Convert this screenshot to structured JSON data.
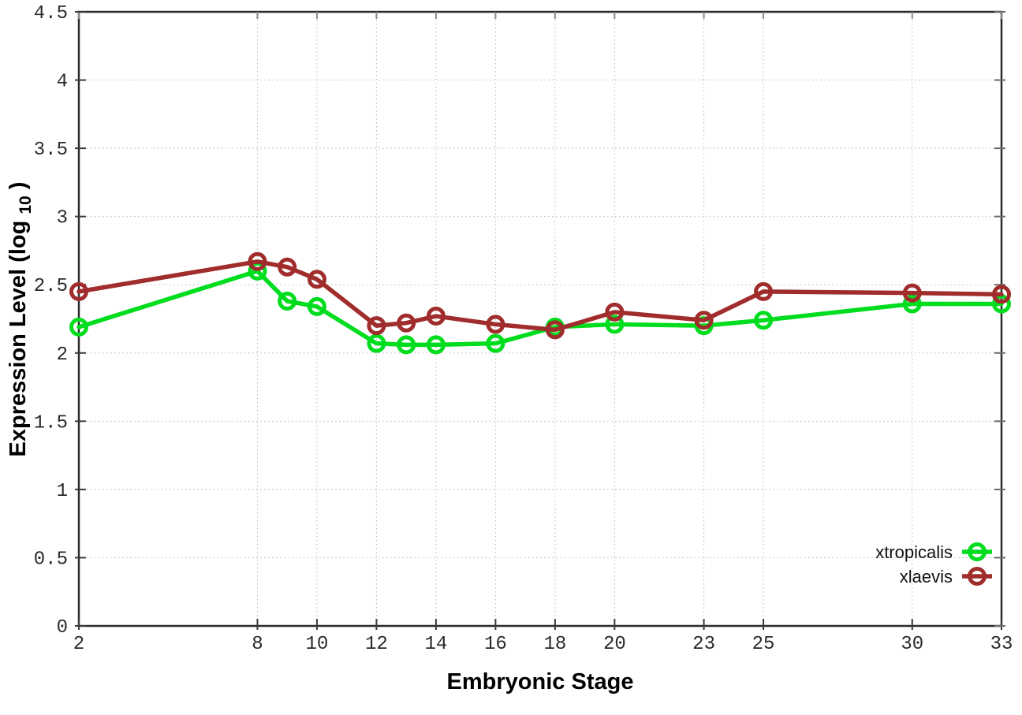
{
  "chart_data": {
    "type": "line",
    "title": "",
    "xlabel": "Embryonic Stage",
    "ylabel": "Expression Level (log10)",
    "ylabel_parts": {
      "main": "Expression Level (log",
      "sub": "10",
      "tail": ")"
    },
    "xlim": [
      2,
      33
    ],
    "ylim": [
      0,
      4.5
    ],
    "x_ticks": [
      2,
      8,
      10,
      12,
      14,
      16,
      18,
      20,
      23,
      25,
      30,
      33
    ],
    "x_tick_labels": [
      "2",
      "8",
      "10",
      "12",
      "14",
      "16",
      "18",
      "20",
      "23",
      "25",
      "30",
      "33"
    ],
    "y_ticks": [
      0,
      0.5,
      1,
      1.5,
      2,
      2.5,
      3,
      3.5,
      4,
      4.5
    ],
    "y_tick_labels": [
      "0",
      "0.5",
      "1",
      "1.5",
      "2",
      "2.5",
      "3",
      "3.5",
      "4",
      "4.5"
    ],
    "grid": true,
    "grid_color": "#b8b8b8",
    "border_color": "#2b2b2b",
    "legend_position": "bottom-right",
    "x": [
      2,
      8,
      9,
      10,
      12,
      13,
      14,
      16,
      18,
      20,
      23,
      25,
      30,
      33
    ],
    "series": [
      {
        "name": "xtropicalis",
        "color": "#00dd1e",
        "values": [
          2.19,
          2.6,
          2.38,
          2.34,
          2.07,
          2.06,
          2.06,
          2.07,
          2.19,
          2.21,
          2.2,
          2.24,
          2.36,
          2.36
        ]
      },
      {
        "name": "xlaevis",
        "color": "#a02c2c",
        "values": [
          2.45,
          2.67,
          2.63,
          2.54,
          2.2,
          2.22,
          2.27,
          2.21,
          2.17,
          2.3,
          2.24,
          2.45,
          2.44,
          2.43
        ]
      }
    ]
  }
}
